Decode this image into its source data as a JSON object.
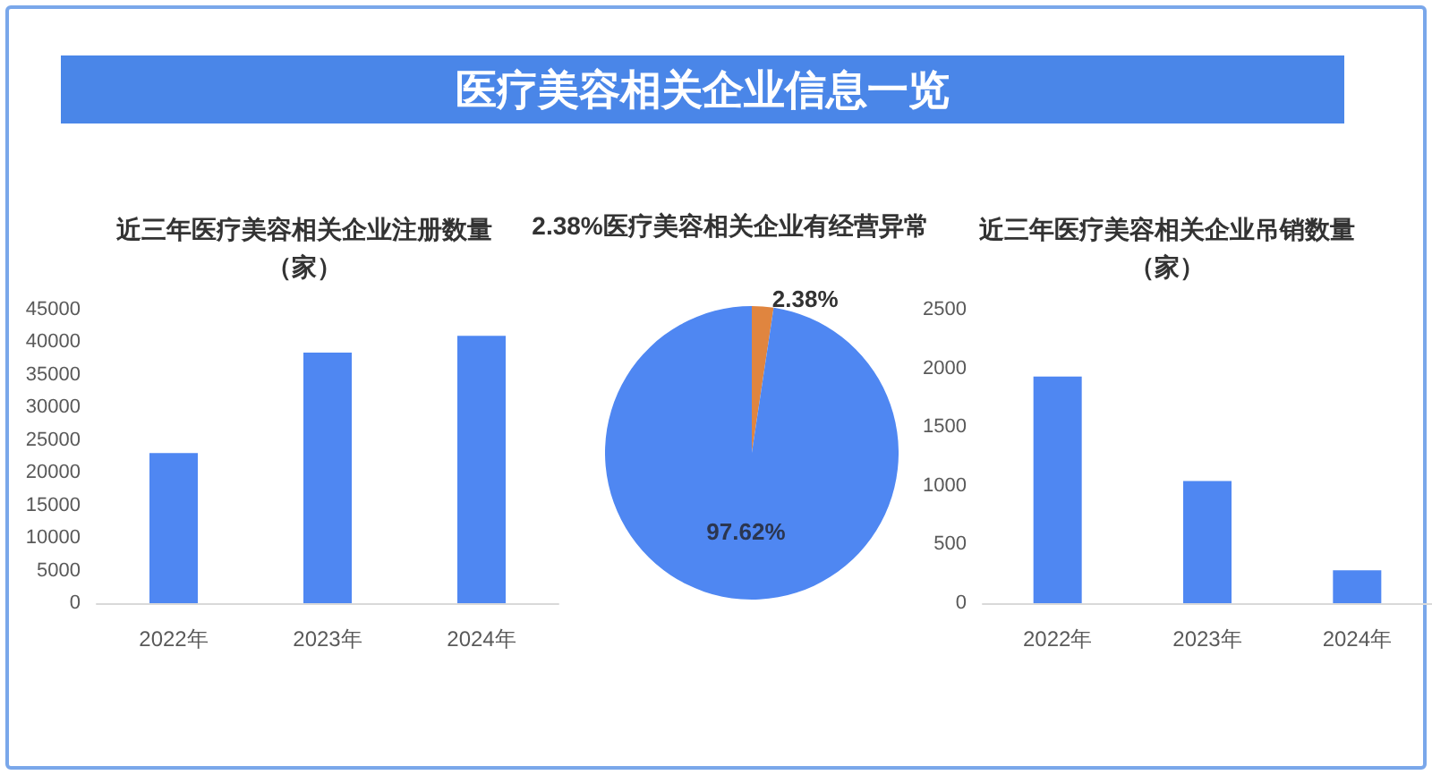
{
  "chart_data": [
    {
      "type": "other",
      "title": "医疗美容相关企业信息一览"
    },
    {
      "type": "bar",
      "title": "近三年医疗美容相关企业注册数量",
      "subtitle": "（家）",
      "categories": [
        "2022年",
        "2023年",
        "2024年"
      ],
      "values": [
        23000,
        38400,
        41000
      ],
      "color": "#4f87f2",
      "ylim": [
        0,
        45000
      ],
      "yticks": [
        0,
        5000,
        10000,
        15000,
        20000,
        25000,
        30000,
        35000,
        40000,
        45000
      ]
    },
    {
      "type": "pie",
      "title": "2.38%医疗美容相关企业有经营异常",
      "categories": [
        null,
        null
      ],
      "values": [
        2.38,
        97.62
      ],
      "colors": [
        "#e0853f",
        "#4f87f2"
      ],
      "value_labels": [
        "2.38%",
        "97.62%"
      ]
    },
    {
      "type": "bar",
      "title": "近三年医疗美容相关企业吊销数量",
      "subtitle": "（家）",
      "categories": [
        "2022年",
        "2023年",
        "2024年"
      ],
      "values": [
        1930,
        1040,
        280
      ],
      "color": "#4f87f2",
      "ylim": [
        0,
        2500
      ],
      "yticks": [
        0,
        500,
        1000,
        1500,
        2000,
        2500
      ]
    }
  ]
}
